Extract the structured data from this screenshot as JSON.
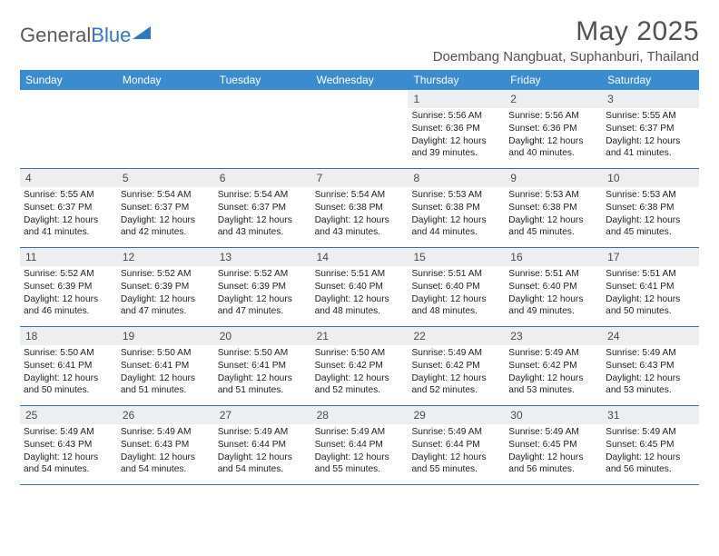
{
  "logo": {
    "textGray": "General",
    "textBlue": "Blue"
  },
  "header": {
    "month": "May 2025",
    "location": "Doembang Nangbuat, Suphanburi, Thailand"
  },
  "colors": {
    "headerBar": "#3b8bd0",
    "dayBar": "#eceef0",
    "rule": "#3b6fa0",
    "text": "#2a2a2a",
    "titleText": "#525252"
  },
  "weekdays": [
    "Sunday",
    "Monday",
    "Tuesday",
    "Wednesday",
    "Thursday",
    "Friday",
    "Saturday"
  ],
  "weeks": [
    [
      null,
      null,
      null,
      null,
      {
        "n": "1",
        "sr": "5:56 AM",
        "ss": "6:36 PM",
        "dl": "12 hours and 39 minutes."
      },
      {
        "n": "2",
        "sr": "5:56 AM",
        "ss": "6:36 PM",
        "dl": "12 hours and 40 minutes."
      },
      {
        "n": "3",
        "sr": "5:55 AM",
        "ss": "6:37 PM",
        "dl": "12 hours and 41 minutes."
      }
    ],
    [
      {
        "n": "4",
        "sr": "5:55 AM",
        "ss": "6:37 PM",
        "dl": "12 hours and 41 minutes."
      },
      {
        "n": "5",
        "sr": "5:54 AM",
        "ss": "6:37 PM",
        "dl": "12 hours and 42 minutes."
      },
      {
        "n": "6",
        "sr": "5:54 AM",
        "ss": "6:37 PM",
        "dl": "12 hours and 43 minutes."
      },
      {
        "n": "7",
        "sr": "5:54 AM",
        "ss": "6:38 PM",
        "dl": "12 hours and 43 minutes."
      },
      {
        "n": "8",
        "sr": "5:53 AM",
        "ss": "6:38 PM",
        "dl": "12 hours and 44 minutes."
      },
      {
        "n": "9",
        "sr": "5:53 AM",
        "ss": "6:38 PM",
        "dl": "12 hours and 45 minutes."
      },
      {
        "n": "10",
        "sr": "5:53 AM",
        "ss": "6:38 PM",
        "dl": "12 hours and 45 minutes."
      }
    ],
    [
      {
        "n": "11",
        "sr": "5:52 AM",
        "ss": "6:39 PM",
        "dl": "12 hours and 46 minutes."
      },
      {
        "n": "12",
        "sr": "5:52 AM",
        "ss": "6:39 PM",
        "dl": "12 hours and 47 minutes."
      },
      {
        "n": "13",
        "sr": "5:52 AM",
        "ss": "6:39 PM",
        "dl": "12 hours and 47 minutes."
      },
      {
        "n": "14",
        "sr": "5:51 AM",
        "ss": "6:40 PM",
        "dl": "12 hours and 48 minutes."
      },
      {
        "n": "15",
        "sr": "5:51 AM",
        "ss": "6:40 PM",
        "dl": "12 hours and 48 minutes."
      },
      {
        "n": "16",
        "sr": "5:51 AM",
        "ss": "6:40 PM",
        "dl": "12 hours and 49 minutes."
      },
      {
        "n": "17",
        "sr": "5:51 AM",
        "ss": "6:41 PM",
        "dl": "12 hours and 50 minutes."
      }
    ],
    [
      {
        "n": "18",
        "sr": "5:50 AM",
        "ss": "6:41 PM",
        "dl": "12 hours and 50 minutes."
      },
      {
        "n": "19",
        "sr": "5:50 AM",
        "ss": "6:41 PM",
        "dl": "12 hours and 51 minutes."
      },
      {
        "n": "20",
        "sr": "5:50 AM",
        "ss": "6:41 PM",
        "dl": "12 hours and 51 minutes."
      },
      {
        "n": "21",
        "sr": "5:50 AM",
        "ss": "6:42 PM",
        "dl": "12 hours and 52 minutes."
      },
      {
        "n": "22",
        "sr": "5:49 AM",
        "ss": "6:42 PM",
        "dl": "12 hours and 52 minutes."
      },
      {
        "n": "23",
        "sr": "5:49 AM",
        "ss": "6:42 PM",
        "dl": "12 hours and 53 minutes."
      },
      {
        "n": "24",
        "sr": "5:49 AM",
        "ss": "6:43 PM",
        "dl": "12 hours and 53 minutes."
      }
    ],
    [
      {
        "n": "25",
        "sr": "5:49 AM",
        "ss": "6:43 PM",
        "dl": "12 hours and 54 minutes."
      },
      {
        "n": "26",
        "sr": "5:49 AM",
        "ss": "6:43 PM",
        "dl": "12 hours and 54 minutes."
      },
      {
        "n": "27",
        "sr": "5:49 AM",
        "ss": "6:44 PM",
        "dl": "12 hours and 54 minutes."
      },
      {
        "n": "28",
        "sr": "5:49 AM",
        "ss": "6:44 PM",
        "dl": "12 hours and 55 minutes."
      },
      {
        "n": "29",
        "sr": "5:49 AM",
        "ss": "6:44 PM",
        "dl": "12 hours and 55 minutes."
      },
      {
        "n": "30",
        "sr": "5:49 AM",
        "ss": "6:45 PM",
        "dl": "12 hours and 56 minutes."
      },
      {
        "n": "31",
        "sr": "5:49 AM",
        "ss": "6:45 PM",
        "dl": "12 hours and 56 minutes."
      }
    ]
  ],
  "labels": {
    "sunrise": "Sunrise:",
    "sunset": "Sunset:",
    "daylight": "Daylight:"
  }
}
